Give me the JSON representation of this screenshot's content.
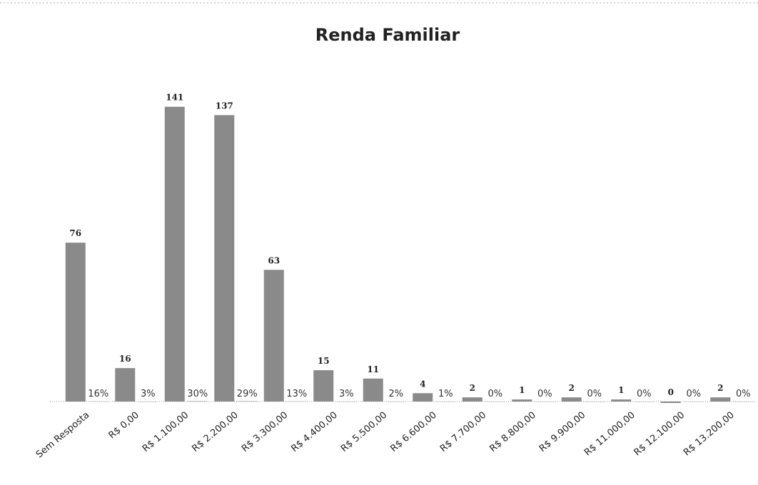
{
  "chart_data": {
    "type": "bar",
    "title": "Renda Familiar",
    "categories": [
      "Sem Resposta",
      "R$ 0,00",
      "R$ 1.100,00",
      "R$ 2.200,00",
      "R$ 3.300,00",
      "R$ 4.400,00",
      "R$ 5.500,00",
      "R$ 6.600,00",
      "R$ 7.700,00",
      "R$ 8.800,00",
      "R$ 9.900,00",
      "R$ 11.000,00",
      "R$ 12.100,00",
      "R$ 13.200,00"
    ],
    "series": [
      {
        "color": "#8a8a8a",
        "values": [
          76,
          16,
          141,
          137,
          63,
          15,
          11,
          4,
          2,
          1,
          2,
          1,
          0,
          2
        ]
      },
      {
        "color": "#b5b5b5",
        "values": [
          0.16,
          0.03,
          0.3,
          0.29,
          0.13,
          0.03,
          0.02,
          0.01,
          0,
          0,
          0,
          0,
          0,
          0
        ],
        "value_labels": [
          "16%",
          "3%",
          "30%",
          "29%",
          "13%",
          "3%",
          "2%",
          "1%",
          "0%",
          "0%",
          "0%",
          "0%",
          "0%",
          "0%"
        ]
      }
    ],
    "ylim": [
      0,
      160
    ]
  }
}
